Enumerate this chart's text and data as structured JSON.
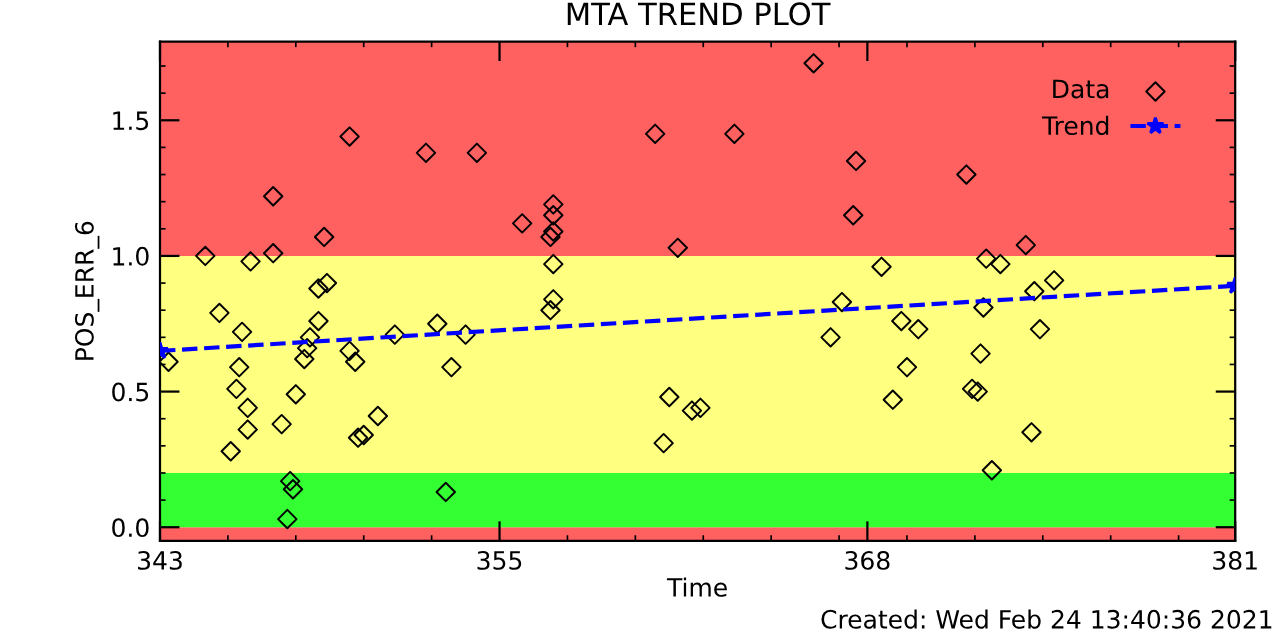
{
  "chart_data": {
    "type": "scatter",
    "title": "MTA TREND PLOT",
    "xlabel": "Time",
    "ylabel": "POS_ERR_6",
    "annotations": [
      "Created: Wed Feb 24 13:40:36 2021"
    ],
    "xlim": [
      343,
      381
    ],
    "xticks": [
      343,
      355,
      368,
      381
    ],
    "ylim": [
      -0.05,
      1.79
    ],
    "yticks": [
      {
        "value": 0,
        "label": "0.0"
      },
      {
        "value": 0.5,
        "label": "0.5"
      },
      {
        "value": 1.0,
        "label": "1.0"
      },
      {
        "value": 1.5,
        "label": "1.5"
      }
    ],
    "bands": [
      {
        "axis": "y",
        "from": -0.05,
        "to": 0,
        "color": "#ff6060"
      },
      {
        "axis": "y",
        "from": 0,
        "to": 0.2,
        "color": "#33ff33"
      },
      {
        "axis": "y",
        "from": 0.2,
        "to": 1.0,
        "color": "#ffff80"
      },
      {
        "axis": "y",
        "from": 1.0,
        "to": 1.79,
        "color": "#ff6060"
      }
    ],
    "grid": false,
    "legend": "top right",
    "series": [
      {
        "name": "Data",
        "color": "#000000",
        "marker": "diamond",
        "x": [
          343.3,
          344.6,
          345.1,
          345.5,
          345.9,
          345.8,
          345.7,
          346.1,
          346.1,
          346.2,
          347.0,
          347.0,
          347.3,
          347.5,
          347.6,
          347.7,
          347.8,
          348.1,
          348.2,
          348.3,
          348.6,
          348.6,
          348.9,
          348.8,
          349.7,
          349.7,
          349.9,
          350.0,
          350.2,
          350.7,
          351.3,
          352.4,
          352.8,
          353.3,
          353.1,
          353.8,
          354.2,
          355.8,
          356.9,
          356.9,
          356.9,
          356.8,
          356.9,
          356.9,
          356.8,
          360.5,
          361.3,
          361.0,
          361.8,
          362.1,
          360.8,
          363.3,
          366.1,
          367.6,
          367.5,
          368.5,
          367.1,
          366.7,
          369.2,
          369.8,
          369.4,
          368.9,
          371.5,
          373.6,
          372.2,
          372.7,
          374.6,
          373.9,
          372.1,
          374.1,
          372.0,
          371.7,
          371.9,
          373.8,
          372.4
        ],
        "values": [
          0.61,
          1.0,
          0.79,
          0.28,
          0.72,
          0.59,
          0.51,
          0.44,
          0.36,
          0.98,
          1.22,
          1.01,
          0.38,
          0.03,
          0.17,
          0.14,
          0.49,
          0.62,
          0.66,
          0.7,
          0.76,
          0.88,
          0.9,
          1.07,
          1.44,
          0.65,
          0.61,
          0.33,
          0.34,
          0.41,
          0.71,
          1.38,
          0.75,
          0.59,
          0.13,
          0.71,
          1.38,
          1.12,
          1.19,
          1.15,
          1.09,
          1.07,
          0.97,
          0.84,
          0.8,
          1.45,
          1.03,
          0.48,
          0.43,
          0.44,
          0.31,
          1.45,
          1.71,
          1.35,
          1.15,
          0.96,
          0.83,
          0.7,
          0.76,
          0.73,
          0.59,
          0.47,
          1.3,
          1.04,
          0.99,
          0.97,
          0.91,
          0.87,
          0.81,
          0.73,
          0.64,
          0.51,
          0.5,
          0.35,
          0.21
        ]
      },
      {
        "name": "Trend",
        "type": "line",
        "color": "#0000ff",
        "marker": "star",
        "line_style": "dashed",
        "x": [
          343,
          381
        ],
        "values": [
          0.65,
          0.89
        ]
      }
    ]
  }
}
